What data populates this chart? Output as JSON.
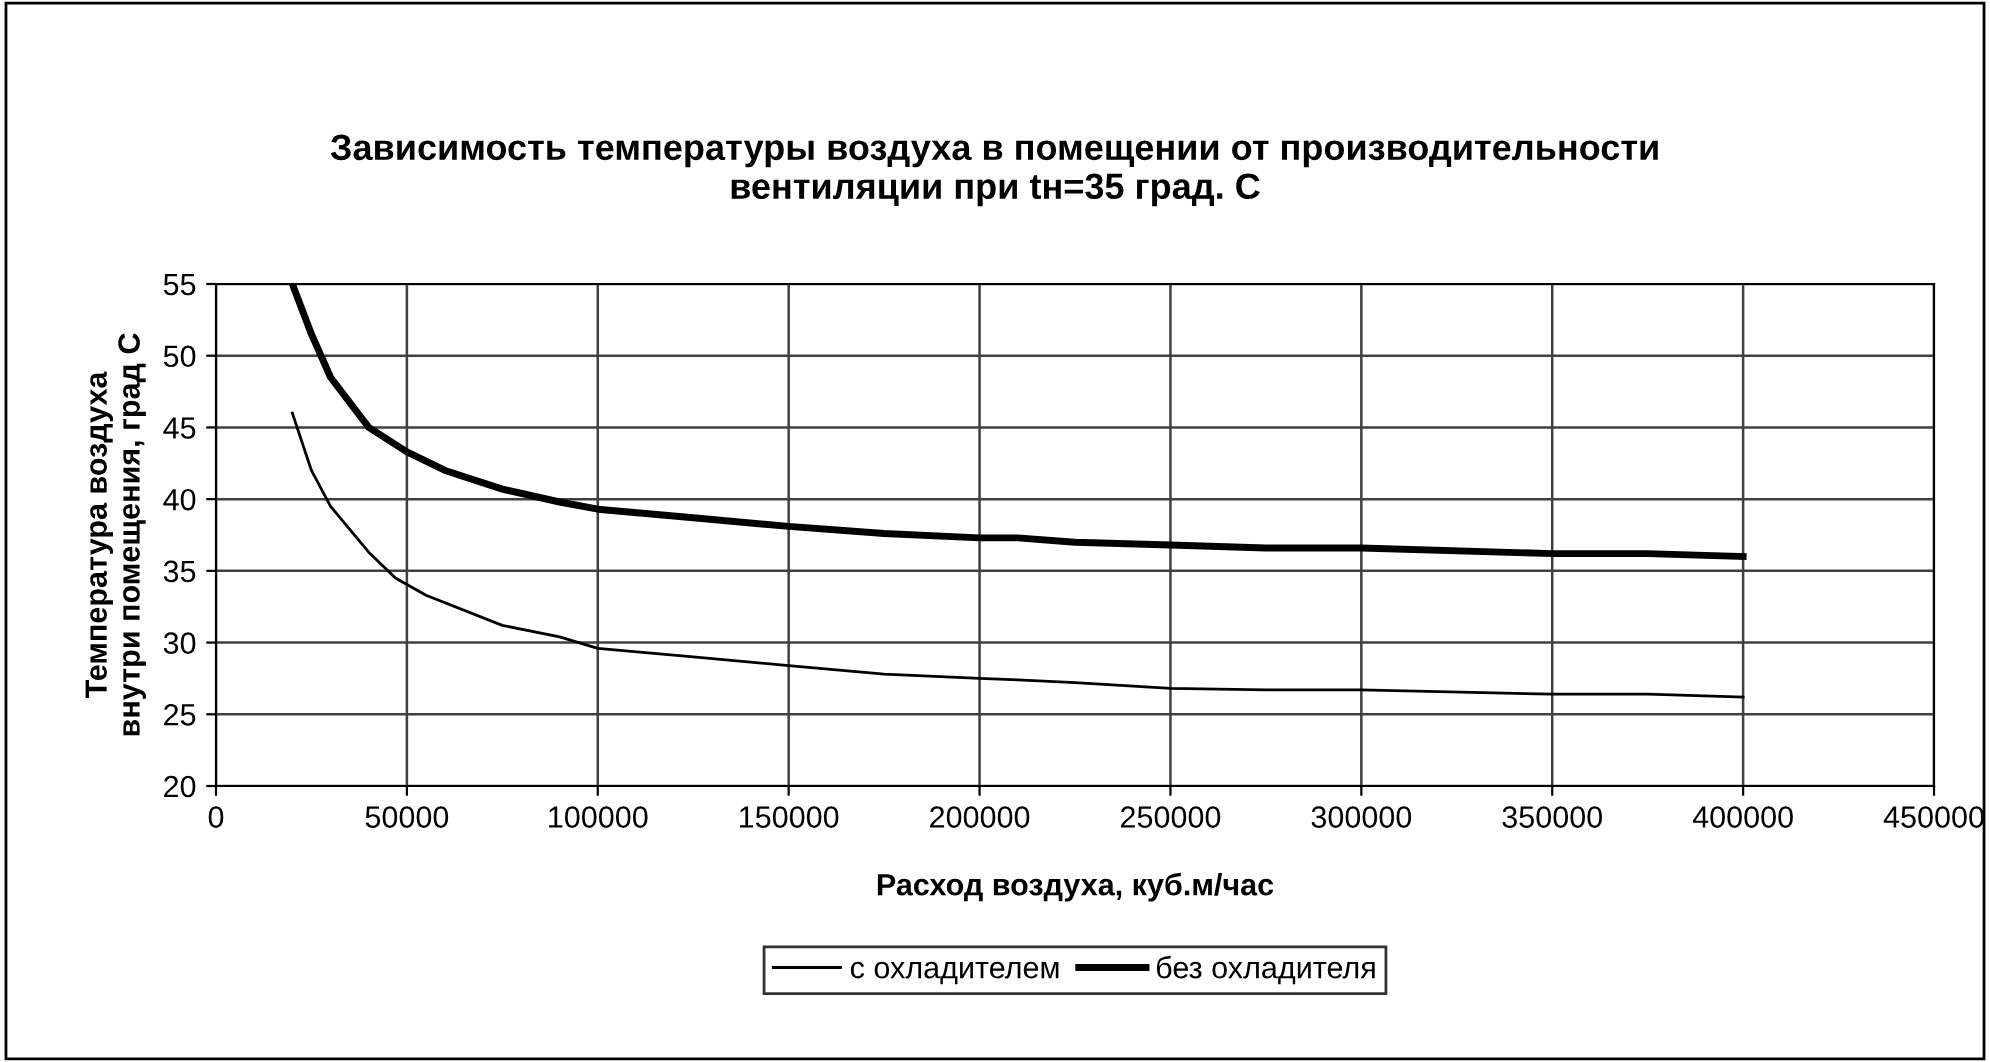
{
  "chart_data": {
    "type": "line",
    "title": "Зависимость температуры воздуха в помещении от производительности\nвентиляции при tн=35 град. С",
    "xlabel": "Расход воздуха, куб.м/час",
    "ylabel": "Температура воздуха\nвнутри помещения, град С",
    "xlim": [
      0,
      450000
    ],
    "xticks": [
      0,
      50000,
      100000,
      150000,
      200000,
      250000,
      300000,
      350000,
      400000,
      450000
    ],
    "ylim": [
      20,
      55
    ],
    "yticks": [
      20,
      25,
      30,
      35,
      40,
      45,
      50,
      55
    ],
    "grid": true,
    "legend": "bottom",
    "marker": "none",
    "line_style": "solid",
    "series": [
      {
        "name": "с охладителем",
        "color": "#000000",
        "x": [
          20000,
          25000,
          30000,
          40000,
          47000,
          55000,
          75000,
          90000,
          100000,
          125000,
          150000,
          175000,
          200000,
          210000,
          225000,
          250000,
          275000,
          300000,
          350000,
          375000,
          400000
        ],
        "values": [
          46,
          42,
          39.5,
          36.3,
          34.5,
          33.3,
          31.2,
          30.4,
          29.6,
          29,
          28.4,
          27.8,
          27.5,
          27.4,
          27.2,
          26.8,
          26.7,
          26.7,
          26.4,
          26.4,
          26.2
        ]
      },
      {
        "name": "без охладителя",
        "color": "#000000",
        "x": [
          20000,
          25000,
          30000,
          40000,
          50000,
          60000,
          75000,
          90000,
          100000,
          125000,
          150000,
          175000,
          200000,
          210000,
          225000,
          250000,
          275000,
          300000,
          350000,
          375000,
          400000
        ],
        "values": [
          55,
          51.5,
          48.5,
          45,
          43.3,
          42,
          40.7,
          39.8,
          39.3,
          38.7,
          38.1,
          37.6,
          37.3,
          37.3,
          37,
          36.8,
          36.6,
          36.6,
          36.2,
          36.2,
          36
        ]
      }
    ]
  }
}
